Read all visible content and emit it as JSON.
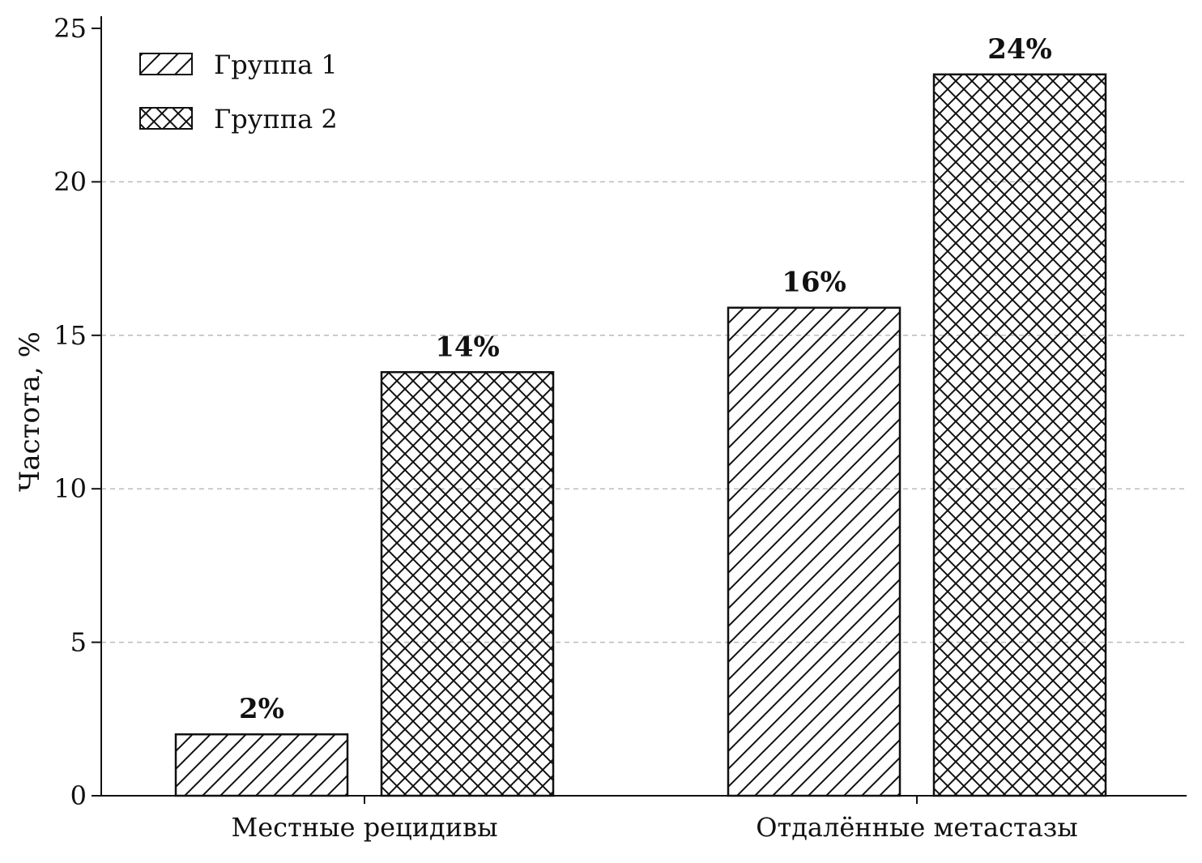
{
  "chart_data": {
    "type": "bar",
    "title": "",
    "xlabel": "",
    "ylabel": "Частота, %",
    "ylim": [
      0,
      25
    ],
    "yticks": [
      0,
      5,
      10,
      15,
      20,
      25
    ],
    "categories": [
      "Местные рецидивы",
      "Отдалённые метастазы"
    ],
    "series": [
      {
        "name": "Группа 1",
        "values": [
          2,
          15.9
        ],
        "labels": [
          "2%",
          "16%"
        ],
        "hatch": "diagonal"
      },
      {
        "name": "Группа 2",
        "values": [
          13.8,
          23.5
        ],
        "labels": [
          "14%",
          "24%"
        ],
        "hatch": "crosshatch"
      }
    ],
    "grid": "horizontal-dashed",
    "legend": "top-left",
    "colors": {
      "bar_fill": "#ffffff",
      "bar_edge": "#111111",
      "grid": "#bbbbbb"
    }
  }
}
